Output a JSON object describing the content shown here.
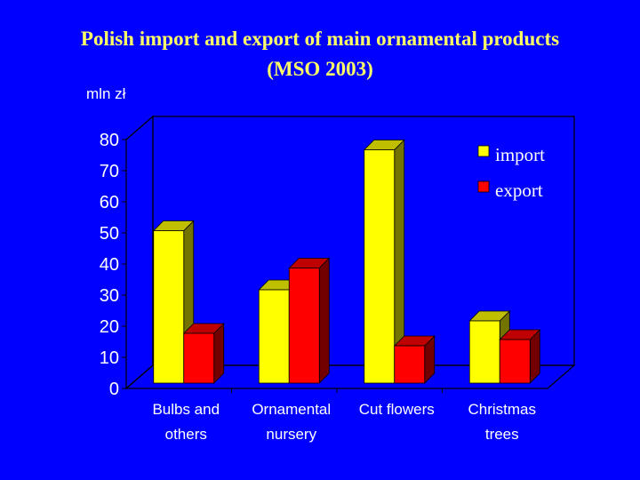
{
  "chart_data": {
    "type": "bar",
    "title": "Polish import and export of main ornamental products",
    "subtitle": "(MSO 2003)",
    "ylabel": "mln zł",
    "ylim": [
      0,
      80
    ],
    "yticks": [
      "0",
      "10",
      "20",
      "30",
      "40",
      "50",
      "60",
      "70",
      "80"
    ],
    "categories": [
      [
        "Bulbs and",
        "others"
      ],
      [
        "Ornamental",
        "nursery"
      ],
      [
        "Cut flowers"
      ],
      [
        "Christmas",
        "trees"
      ]
    ],
    "series": [
      {
        "name": "import",
        "values": [
          49,
          30,
          75,
          20
        ],
        "color": "#ffff00"
      },
      {
        "name": "export",
        "values": [
          16,
          37,
          12,
          14
        ],
        "color": "#ff0000"
      }
    ],
    "legend": "top-right",
    "grid": false
  },
  "colors": {
    "background": "#0000ff",
    "title": "#ffff66",
    "text": "#ffffff"
  }
}
